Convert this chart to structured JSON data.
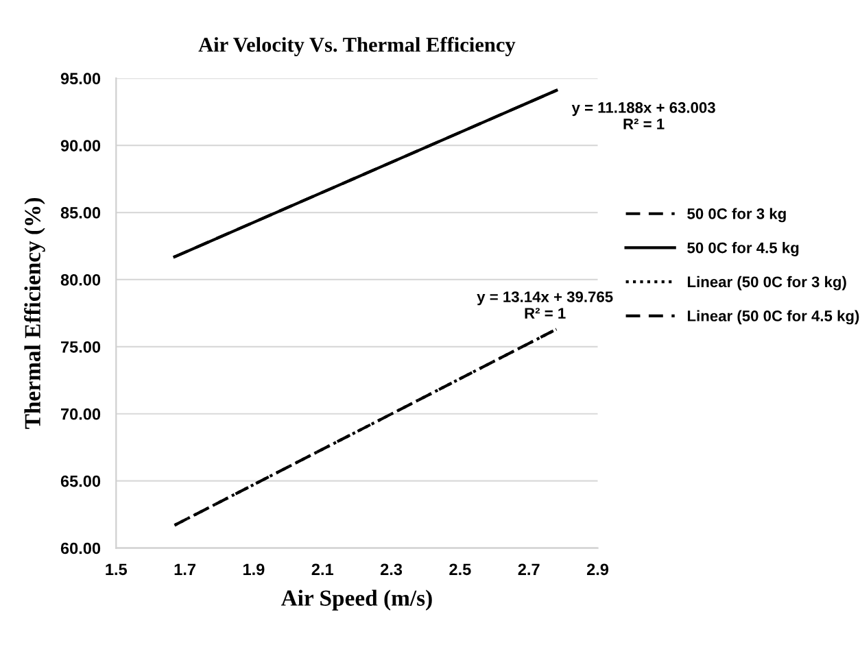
{
  "chart_data": {
    "type": "line",
    "title": "Air Velocity Vs. Thermal Efficiency",
    "xlabel": "Air Speed (m/s)",
    "ylabel": "Thermal Efficiency (%)",
    "series": [
      {
        "name": "50 0C for 3 kg",
        "color": "#000000",
        "line_style": "dashed",
        "values": [
          61.7,
          76.3
        ]
      },
      {
        "name": "50 0C for 4.5 kg",
        "color": "#000000",
        "line_style": "solid",
        "values": [
          81.7,
          94.1
        ]
      },
      {
        "name": "Linear (50 0C for 3 kg)",
        "color": "#000000",
        "line_style": "dotted",
        "values": [
          61.7,
          76.3
        ]
      },
      {
        "name": "Linear (50 0C for 4.5 kg)",
        "color": "#000000",
        "line_style": "dashed",
        "values": [
          81.7,
          94.1
        ]
      }
    ],
    "x": [
      1.67,
      2.78
    ],
    "annotations": [
      {
        "text": "y = 11.188x + 63.003\nR² = 1",
        "x": 2.78,
        "y": 94.1
      },
      {
        "text": "y = 13.14x + 39.765\nR² = 1",
        "x": 2.78,
        "y": 76.3
      }
    ],
    "xlim": [
      1.5,
      2.9
    ],
    "xticks": [
      1.5,
      1.7,
      1.9,
      2.1,
      2.3,
      2.5,
      2.7,
      2.9
    ],
    "ylim": [
      60,
      95
    ],
    "yticks": [
      {
        "value": 60,
        "label": "60.00"
      },
      {
        "value": 65,
        "label": "65.00"
      },
      {
        "value": 70,
        "label": "70.00"
      },
      {
        "value": 75,
        "label": "75.00"
      },
      {
        "value": 80,
        "label": "80.00"
      },
      {
        "value": 85,
        "label": "85.00"
      },
      {
        "value": 90,
        "label": "90.00"
      },
      {
        "value": 95,
        "label": "95.00"
      }
    ],
    "grid": "y",
    "legend": "right",
    "marker": "none"
  }
}
